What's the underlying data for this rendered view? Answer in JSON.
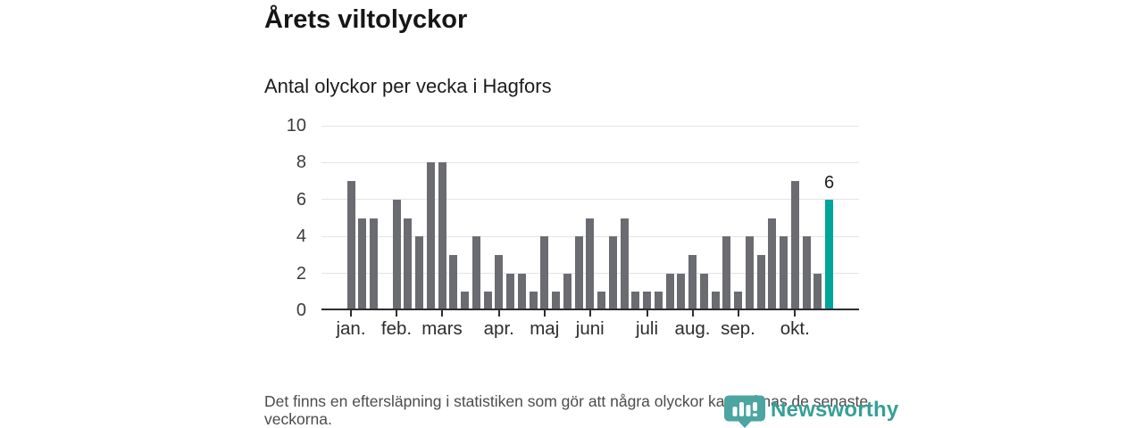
{
  "header": {
    "title": "Årets viltolyckor",
    "subtitle": "Antal olyckor per vecka i Hagfors"
  },
  "chart_data": {
    "type": "bar",
    "title": "Årets viltolyckor",
    "subtitle": "Antal olyckor per vecka i Hagfors",
    "x_unit": "vecka (jan.–okt., 43 veckor)",
    "values": [
      7,
      5,
      5,
      0,
      6,
      5,
      4,
      8,
      8,
      3,
      1,
      4,
      1,
      3,
      2,
      2,
      1,
      4,
      1,
      2,
      4,
      5,
      1,
      4,
      5,
      1,
      1,
      1,
      2,
      2,
      3,
      2,
      1,
      4,
      1,
      4,
      3,
      5,
      4,
      7,
      4,
      2,
      6
    ],
    "month_ticks": [
      {
        "label": "jan.",
        "index": 0
      },
      {
        "label": "feb.",
        "index": 4
      },
      {
        "label": "mars",
        "index": 8
      },
      {
        "label": "apr.",
        "index": 13
      },
      {
        "label": "maj",
        "index": 17
      },
      {
        "label": "juni",
        "index": 21
      },
      {
        "label": "juli",
        "index": 26
      },
      {
        "label": "aug.",
        "index": 30
      },
      {
        "label": "sep.",
        "index": 34
      },
      {
        "label": "okt.",
        "index": 39
      }
    ],
    "y_ticks": [
      0,
      2,
      4,
      6,
      8,
      10
    ],
    "ylim": [
      0,
      10
    ],
    "grid": true,
    "legend": false,
    "highlight": {
      "index": 42,
      "value": 6,
      "label": "6"
    },
    "colors": {
      "bar": "#6b6b72",
      "highlight": "#00a59b",
      "gridline": "#e3e3e3",
      "axis": "#2d2d2d",
      "tick_label": "#3c3c3c"
    }
  },
  "footer": {
    "note": "Det finns en eftersläpning i statistiken som gör att några olyckor kan saknas de senaste veckorna."
  },
  "branding": {
    "name": "Newsworthy",
    "text_color": "#35a097",
    "icon_color": "#4ba5a1"
  }
}
